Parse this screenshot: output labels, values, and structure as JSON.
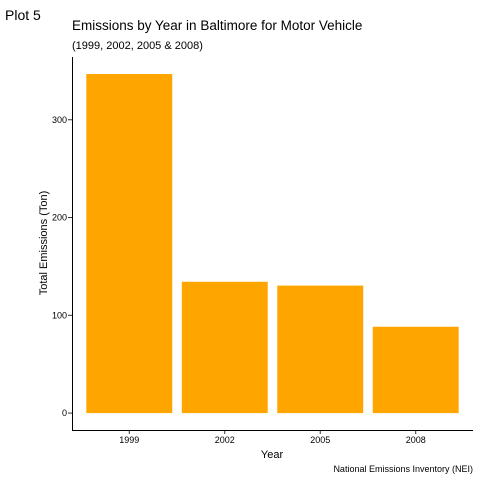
{
  "plot_label": "Plot 5",
  "chart_data": {
    "type": "bar",
    "title": "Emissions by Year in Baltimore for Motor Vehicle",
    "subtitle": "(1999, 2002, 2005 & 2008)",
    "xlabel": "Year",
    "ylabel": "Total Emissions (Ton)",
    "caption": "National Emissions Inventory (NEI)",
    "categories": [
      "1999",
      "2002",
      "2005",
      "2008"
    ],
    "values": [
      346.8,
      134.3,
      130.4,
      88.3
    ],
    "ylim": [
      -17.3,
      364.2
    ],
    "yticks": [
      0,
      100,
      200,
      300
    ],
    "bar_color": "#FFA500",
    "grid": false
  }
}
